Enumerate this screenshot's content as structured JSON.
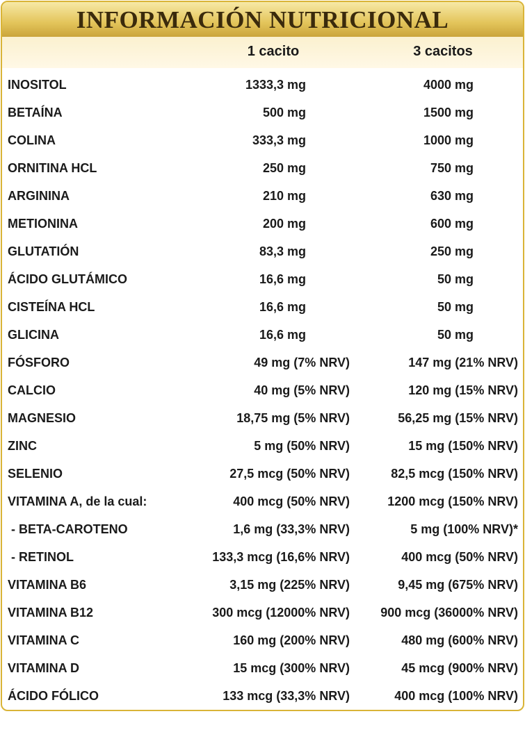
{
  "title": "INFORMACIÓN NUTRICIONAL",
  "table": {
    "columns": [
      "1 cacito",
      "3 cacitos"
    ],
    "rows": [
      [
        "INOSITOL",
        "1333,3 mg",
        "4000 mg"
      ],
      [
        "BETAÍNA",
        "500 mg",
        "1500 mg"
      ],
      [
        "COLINA",
        "333,3 mg",
        "1000 mg"
      ],
      [
        "ORNITINA HCL",
        "250 mg",
        "750 mg"
      ],
      [
        "ARGININA",
        "210 mg",
        "630 mg"
      ],
      [
        "METIONINA",
        "200 mg",
        "600 mg"
      ],
      [
        "GLUTATIÓN",
        "83,3 mg",
        "250 mg"
      ],
      [
        "ÁCIDO GLUTÁMICO",
        "16,6 mg",
        "50 mg"
      ],
      [
        "CISTEÍNA HCL",
        "16,6 mg",
        "50 mg"
      ],
      [
        "GLICINA",
        "16,6 mg",
        "50 mg"
      ],
      [
        "FÓSFORO",
        "49 mg (7% NRV)",
        "147 mg (21% NRV)"
      ],
      [
        "CALCIO",
        "40 mg (5% NRV)",
        "120 mg (15% NRV)"
      ],
      [
        "MAGNESIO",
        "18,75 mg (5% NRV)",
        "56,25 mg (15% NRV)"
      ],
      [
        "ZINC",
        "5 mg (50% NRV)",
        "15 mg (150% NRV)"
      ],
      [
        "SELENIO",
        "27,5 mcg (50% NRV)",
        "82,5 mcg (150% NRV)"
      ],
      [
        "VITAMINA A, de la cual:",
        "400 mcg (50% NRV)",
        "1200 mcg (150% NRV)"
      ],
      [
        " - BETA-CAROTENO",
        "1,6 mg (33,3% NRV)",
        "5 mg (100% NRV)*"
      ],
      [
        " - RETINOL",
        "133,3 mcg (16,6% NRV)",
        "400 mcg (50% NRV)"
      ],
      [
        "VITAMINA B6",
        "3,15 mg (225% NRV)",
        "9,45 mg (675% NRV)"
      ],
      [
        "VITAMINA B12",
        "300 mcg (12000% NRV)",
        "900 mcg (36000% NRV)"
      ],
      [
        "VITAMINA C",
        "160 mg (200% NRV)",
        "480 mg (600% NRV)"
      ],
      [
        "VITAMINA D",
        "15 mcg (300% NRV)",
        "45 mcg (900% NRV)"
      ],
      [
        "ÁCIDO FÓLICO",
        "133 mcg (33,3% NRV)",
        "400 mcg (100% NRV)"
      ]
    ]
  }
}
